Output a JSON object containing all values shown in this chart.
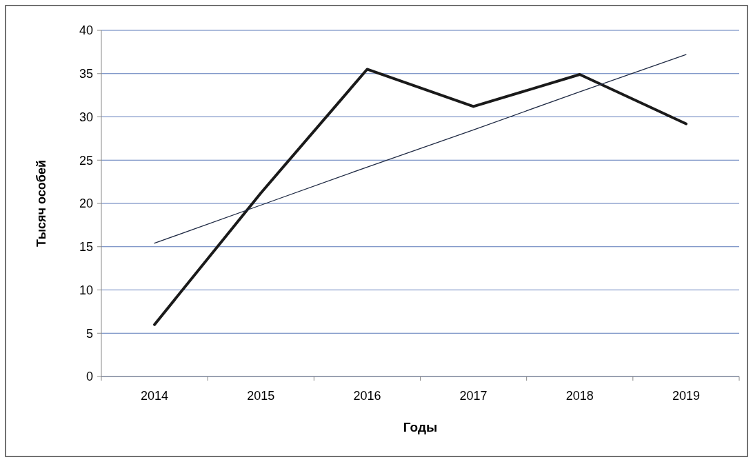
{
  "chart_data": {
    "type": "line",
    "xlabel": "Годы",
    "ylabel": "Тысяч особей",
    "categories": [
      "2014",
      "2015",
      "2016",
      "2017",
      "2018",
      "2019"
    ],
    "series": [
      {
        "color": "#1a1a1a",
        "values": [
          6,
          21.2,
          35.5,
          31.2,
          34.9,
          29.2
        ]
      },
      {
        "color": "#1f2a44",
        "values": [
          15.4,
          19.8,
          24.2,
          28.5,
          32.9,
          37.2
        ]
      }
    ],
    "ylim": [
      0,
      40
    ],
    "yticks": [
      0,
      5,
      10,
      15,
      20,
      25,
      30,
      35,
      40
    ],
    "grid": "y",
    "marker": "none"
  }
}
